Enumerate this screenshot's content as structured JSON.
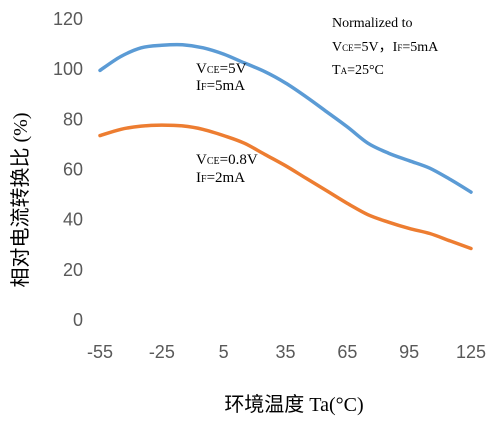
{
  "chart_data": {
    "type": "line",
    "xlabel": "环境温度  Ta(°C)",
    "ylabel": "相对电流转换比 (%)",
    "x_ticks": [
      "-55",
      "-25",
      "5",
      "35",
      "65",
      "95",
      "125"
    ],
    "y_ticks": [
      "0",
      "20",
      "40",
      "60",
      "80",
      "100",
      "120"
    ],
    "xlim": [
      -55,
      125
    ],
    "ylim": [
      0,
      120
    ],
    "grid": false,
    "series": [
      {
        "color": "#5B9BD5",
        "x": [
          -55,
          -45,
          -35,
          -25,
          -15,
          -5,
          5,
          15,
          25,
          35,
          45,
          55,
          65,
          75,
          85,
          95,
          105,
          115,
          125
        ],
        "y": [
          99.5,
          105,
          108.5,
          109.5,
          109.7,
          108.5,
          106,
          102.5,
          99,
          94.5,
          89,
          83,
          77,
          70.5,
          66.5,
          63.5,
          60.5,
          56,
          51
        ]
      },
      {
        "color": "#ED7D31",
        "x": [
          -55,
          -45,
          -35,
          -25,
          -15,
          -5,
          5,
          15,
          25,
          35,
          45,
          55,
          65,
          75,
          85,
          95,
          105,
          115,
          125
        ],
        "y": [
          73.5,
          76,
          77.3,
          77.7,
          77.4,
          76,
          73.5,
          70.5,
          66,
          61.5,
          56.5,
          51.5,
          46.5,
          42,
          39,
          36.5,
          34.5,
          31.5,
          28.5
        ]
      }
    ],
    "annotations": {
      "blue": {
        "vce_main": "V",
        "vce_sub": "CE",
        "vce_val": "=5V",
        "if_main": "I",
        "if_sub": "F",
        "if_val": "=5mA"
      },
      "orange": {
        "vce_main": "V",
        "vce_sub": "CE",
        "vce_val": "=0.8V",
        "if_main": "I",
        "if_sub": "F",
        "if_val": "=2mA"
      },
      "note": {
        "line1": "Normalized to",
        "l2_v": "V",
        "l2_vsub": "CE",
        "l2_val": "=5V，",
        "l2_i": "I",
        "l2_isub": "F",
        "l2_ival": "=5mA",
        "l3_t": "T",
        "l3_tsub": "A",
        "l3_val": "=25°C"
      }
    }
  }
}
